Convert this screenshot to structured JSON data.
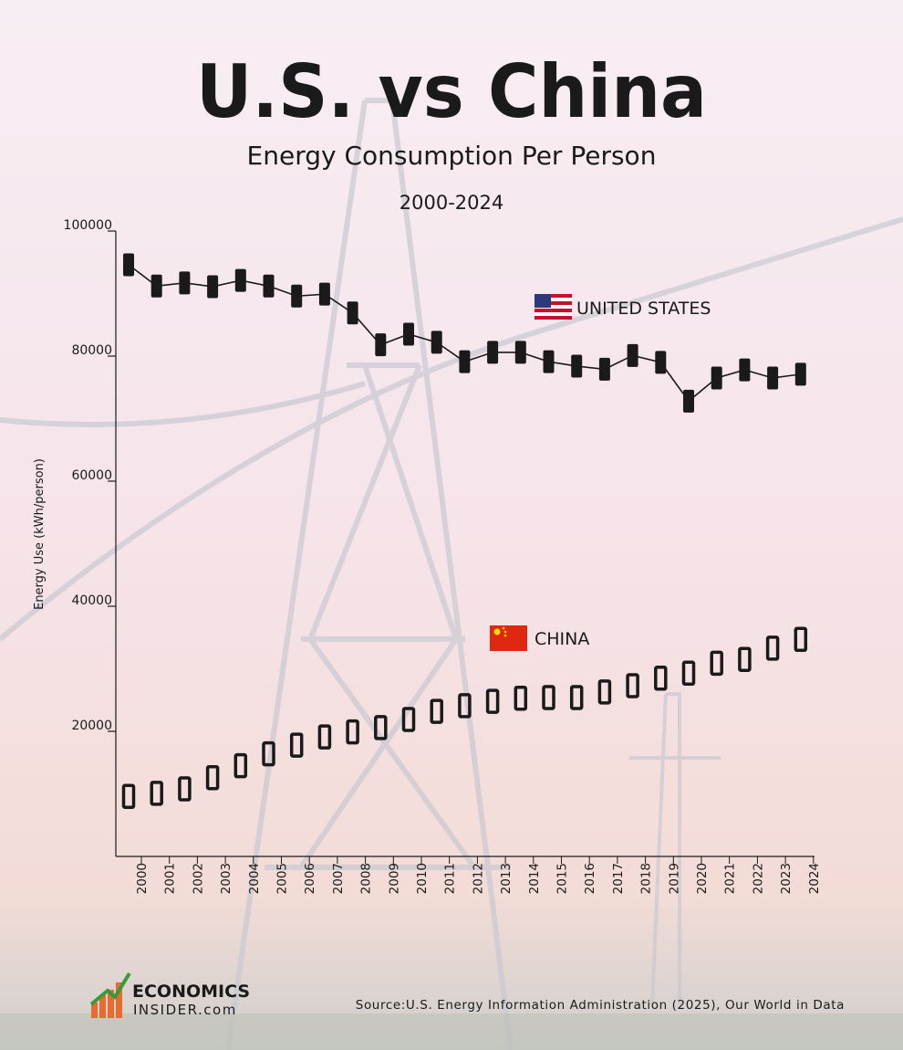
{
  "chart_data": {
    "type": "line",
    "title": "U.S. vs China",
    "subtitle": "Energy Consumption Per Person",
    "period": "2000-2024",
    "y_label": "Energy Use (kWh/person)",
    "categories": [
      "2000",
      "2001",
      "2002",
      "2003",
      "2004",
      "2005",
      "2006",
      "2007",
      "2008",
      "2009",
      "2010",
      "2011",
      "2012",
      "2013",
      "2014",
      "2015",
      "2016",
      "2017",
      "2018",
      "2019",
      "2020",
      "2021",
      "2022",
      "2023",
      "2024"
    ],
    "series": [
      {
        "name": "UNITED STATES",
        "color": "#1a1a1a",
        "marker": "filled",
        "connected": true,
        "values": [
          94600,
          91200,
          91700,
          91100,
          92100,
          91200,
          89600,
          89900,
          86900,
          81800,
          83500,
          82200,
          79100,
          80600,
          80600,
          79100,
          78400,
          77900,
          80100,
          79000,
          72800,
          76500,
          77800,
          76500,
          77100
        ]
      },
      {
        "name": "CHINA",
        "color": "#1a1a1a",
        "marker": "hollow",
        "connected": false,
        "values": [
          9600,
          10100,
          10800,
          12600,
          14500,
          16400,
          17800,
          19100,
          19900,
          20600,
          21900,
          23200,
          24100,
          24800,
          25300,
          25400,
          25400,
          26300,
          27300,
          28500,
          29300,
          30900,
          31500,
          33300,
          34700
        ]
      }
    ],
    "ylim": [
      0,
      100000
    ],
    "yticks": [
      20000,
      40000,
      60000,
      80000,
      100000
    ],
    "source": "Source:U.S. Energy Information Administration (2025), Our World in Data",
    "logo": {
      "line1": "ECONOMICS",
      "line2": "INSIDER.com"
    }
  }
}
